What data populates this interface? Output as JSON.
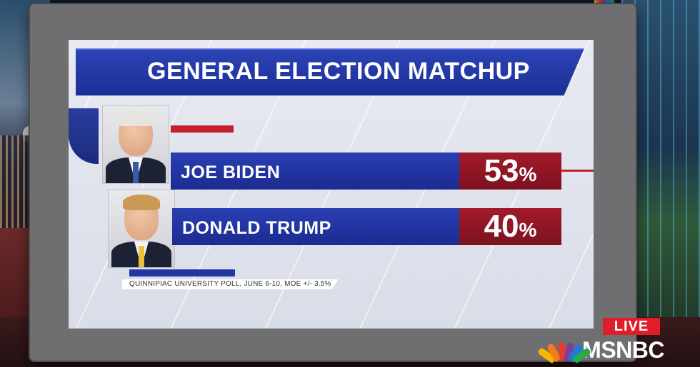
{
  "title": "GENERAL ELECTION MATCHUP",
  "candidates": [
    {
      "name": "JOE BIDEN",
      "percent": "53",
      "percent_sign": "%",
      "tie_color": "#3a5aa8",
      "hair_color": "#e7e4df"
    },
    {
      "name": "DONALD TRUMP",
      "percent": "40",
      "percent_sign": "%",
      "tie_color": "#e8c23a",
      "hair_color": "#c99955"
    }
  ],
  "source": "QUINNIPIAC UNIVERSITY POLL, JUNE 6-10, MOE +/- 3.5%",
  "live_label": "LIVE",
  "network": "MSNBC",
  "colors": {
    "banner_blue": "#1f33a0",
    "bar_red": "#8e1526",
    "live_red": "#e01e2a"
  }
}
